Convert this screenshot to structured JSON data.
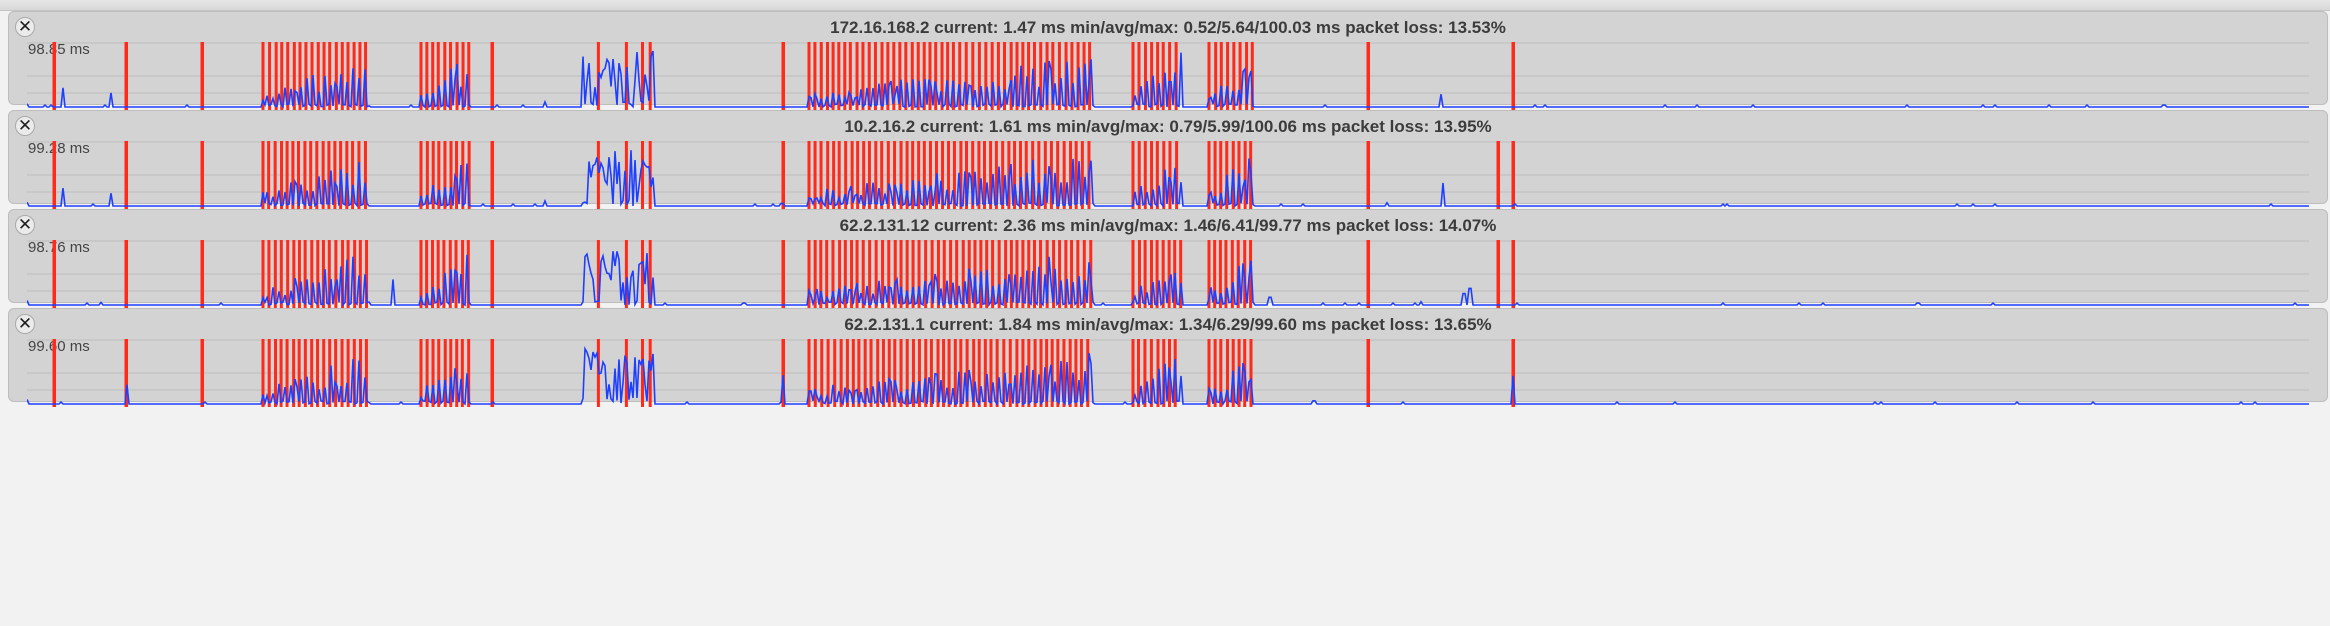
{
  "window": {
    "title": ""
  },
  "colors": {
    "background": "#f2f2f2",
    "panel": "#d3d3d3",
    "loss": "#ff2a1a",
    "latency": "#1f3fff",
    "grid": "#bcbcbc"
  },
  "icons": {
    "close": "close-icon",
    "close_glyph": "✕"
  },
  "panels": [
    {
      "host": "172.16.168.2",
      "title": "172.16.168.2 current: 1.47 ms min/avg/max: 0.52/5.64/100.03 ms packet loss: 13.53%",
      "current_ms": 1.47,
      "min_ms": 0.52,
      "avg_ms": 5.64,
      "max_ms": 100.03,
      "packet_loss_pct": 13.53,
      "max_label": "98.85 ms",
      "extra_loss": [],
      "spikes": [
        [
          18,
          0.05
        ],
        [
          54,
          0.3
        ],
        [
          102,
          0.22
        ],
        [
          536,
          0.08
        ],
        [
          1432,
          0.2
        ]
      ]
    },
    {
      "host": "10.2.16.2",
      "title": "10.2.16.2 current: 1.61 ms min/avg/max: 0.79/5.99/100.06 ms packet loss: 13.95%",
      "current_ms": 1.61,
      "min_ms": 0.79,
      "avg_ms": 5.99,
      "max_ms": 100.06,
      "packet_loss_pct": 13.95,
      "max_label": "99.28 ms",
      "extra_loss": [
        1489
      ],
      "spikes": [
        [
          18,
          0.06
        ],
        [
          54,
          0.28
        ],
        [
          102,
          0.2
        ],
        [
          536,
          0.08
        ],
        [
          773,
          0.04
        ],
        [
          1434,
          0.36
        ],
        [
          1378,
          0.05
        ]
      ]
    },
    {
      "host": "62.2.131.12",
      "title": "62.2.131.12 current: 2.36 ms min/avg/max: 1.46/6.41/99.77 ms packet loss: 14.07%",
      "current_ms": 2.36,
      "min_ms": 1.46,
      "avg_ms": 6.41,
      "max_ms": 99.77,
      "packet_loss_pct": 14.07,
      "max_label": "98.76 ms",
      "extra_loss": [
        1489
      ],
      "spikes": [
        [
          18,
          0.07
        ],
        [
          92,
          0.04
        ],
        [
          384,
          0.4
        ],
        [
          1261,
          0.12
        ],
        [
          1455,
          0.18
        ],
        [
          1461,
          0.26
        ],
        [
          1412,
          0.05
        ]
      ]
    },
    {
      "host": "62.2.131.1",
      "title": "62.2.131.1 current: 1.84 ms min/avg/max: 1.34/6.29/99.60 ms packet loss: 13.65%",
      "current_ms": 1.84,
      "min_ms": 1.34,
      "avg_ms": 6.29,
      "max_ms": 99.6,
      "packet_loss_pct": 13.65,
      "max_label": "99.60 ms",
      "extra_loss": [],
      "spikes": [
        [
          18,
          0.07
        ],
        [
          118,
          0.3
        ],
        [
          774,
          0.45
        ],
        [
          1504,
          0.44
        ],
        [
          1305,
          0.05
        ]
      ]
    }
  ],
  "loss_pattern": {
    "single": [
      45,
      117,
      193,
      483,
      774,
      1359,
      1504
    ],
    "clusters": [
      [
        254,
        360
      ],
      [
        412,
        461
      ],
      [
        800,
        1084
      ],
      [
        1124,
        1172
      ],
      [
        1200,
        1244
      ]
    ],
    "sparse": [
      [
        574,
        644
      ]
    ]
  }
}
